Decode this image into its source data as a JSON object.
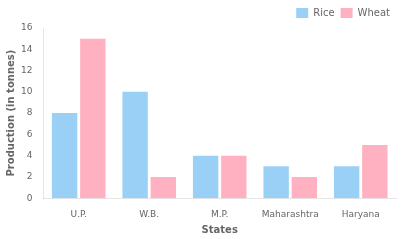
{
  "chart_data": {
    "type": "bar",
    "categories": [
      "U.P.",
      "W.B.",
      "M.P.",
      "Maharashtra",
      "Haryana"
    ],
    "series": [
      {
        "name": "Rice",
        "values": [
          8,
          10,
          4,
          3,
          3
        ]
      },
      {
        "name": "Wheat",
        "values": [
          15,
          2,
          4,
          2,
          5
        ]
      }
    ],
    "xlabel": "States",
    "ylabel": "Production (in tonnes)",
    "ylim": [
      0,
      16
    ],
    "yticks": [
      0,
      2,
      4,
      6,
      8,
      10,
      12,
      14,
      16
    ],
    "legend": "upper right",
    "grid": false
  }
}
